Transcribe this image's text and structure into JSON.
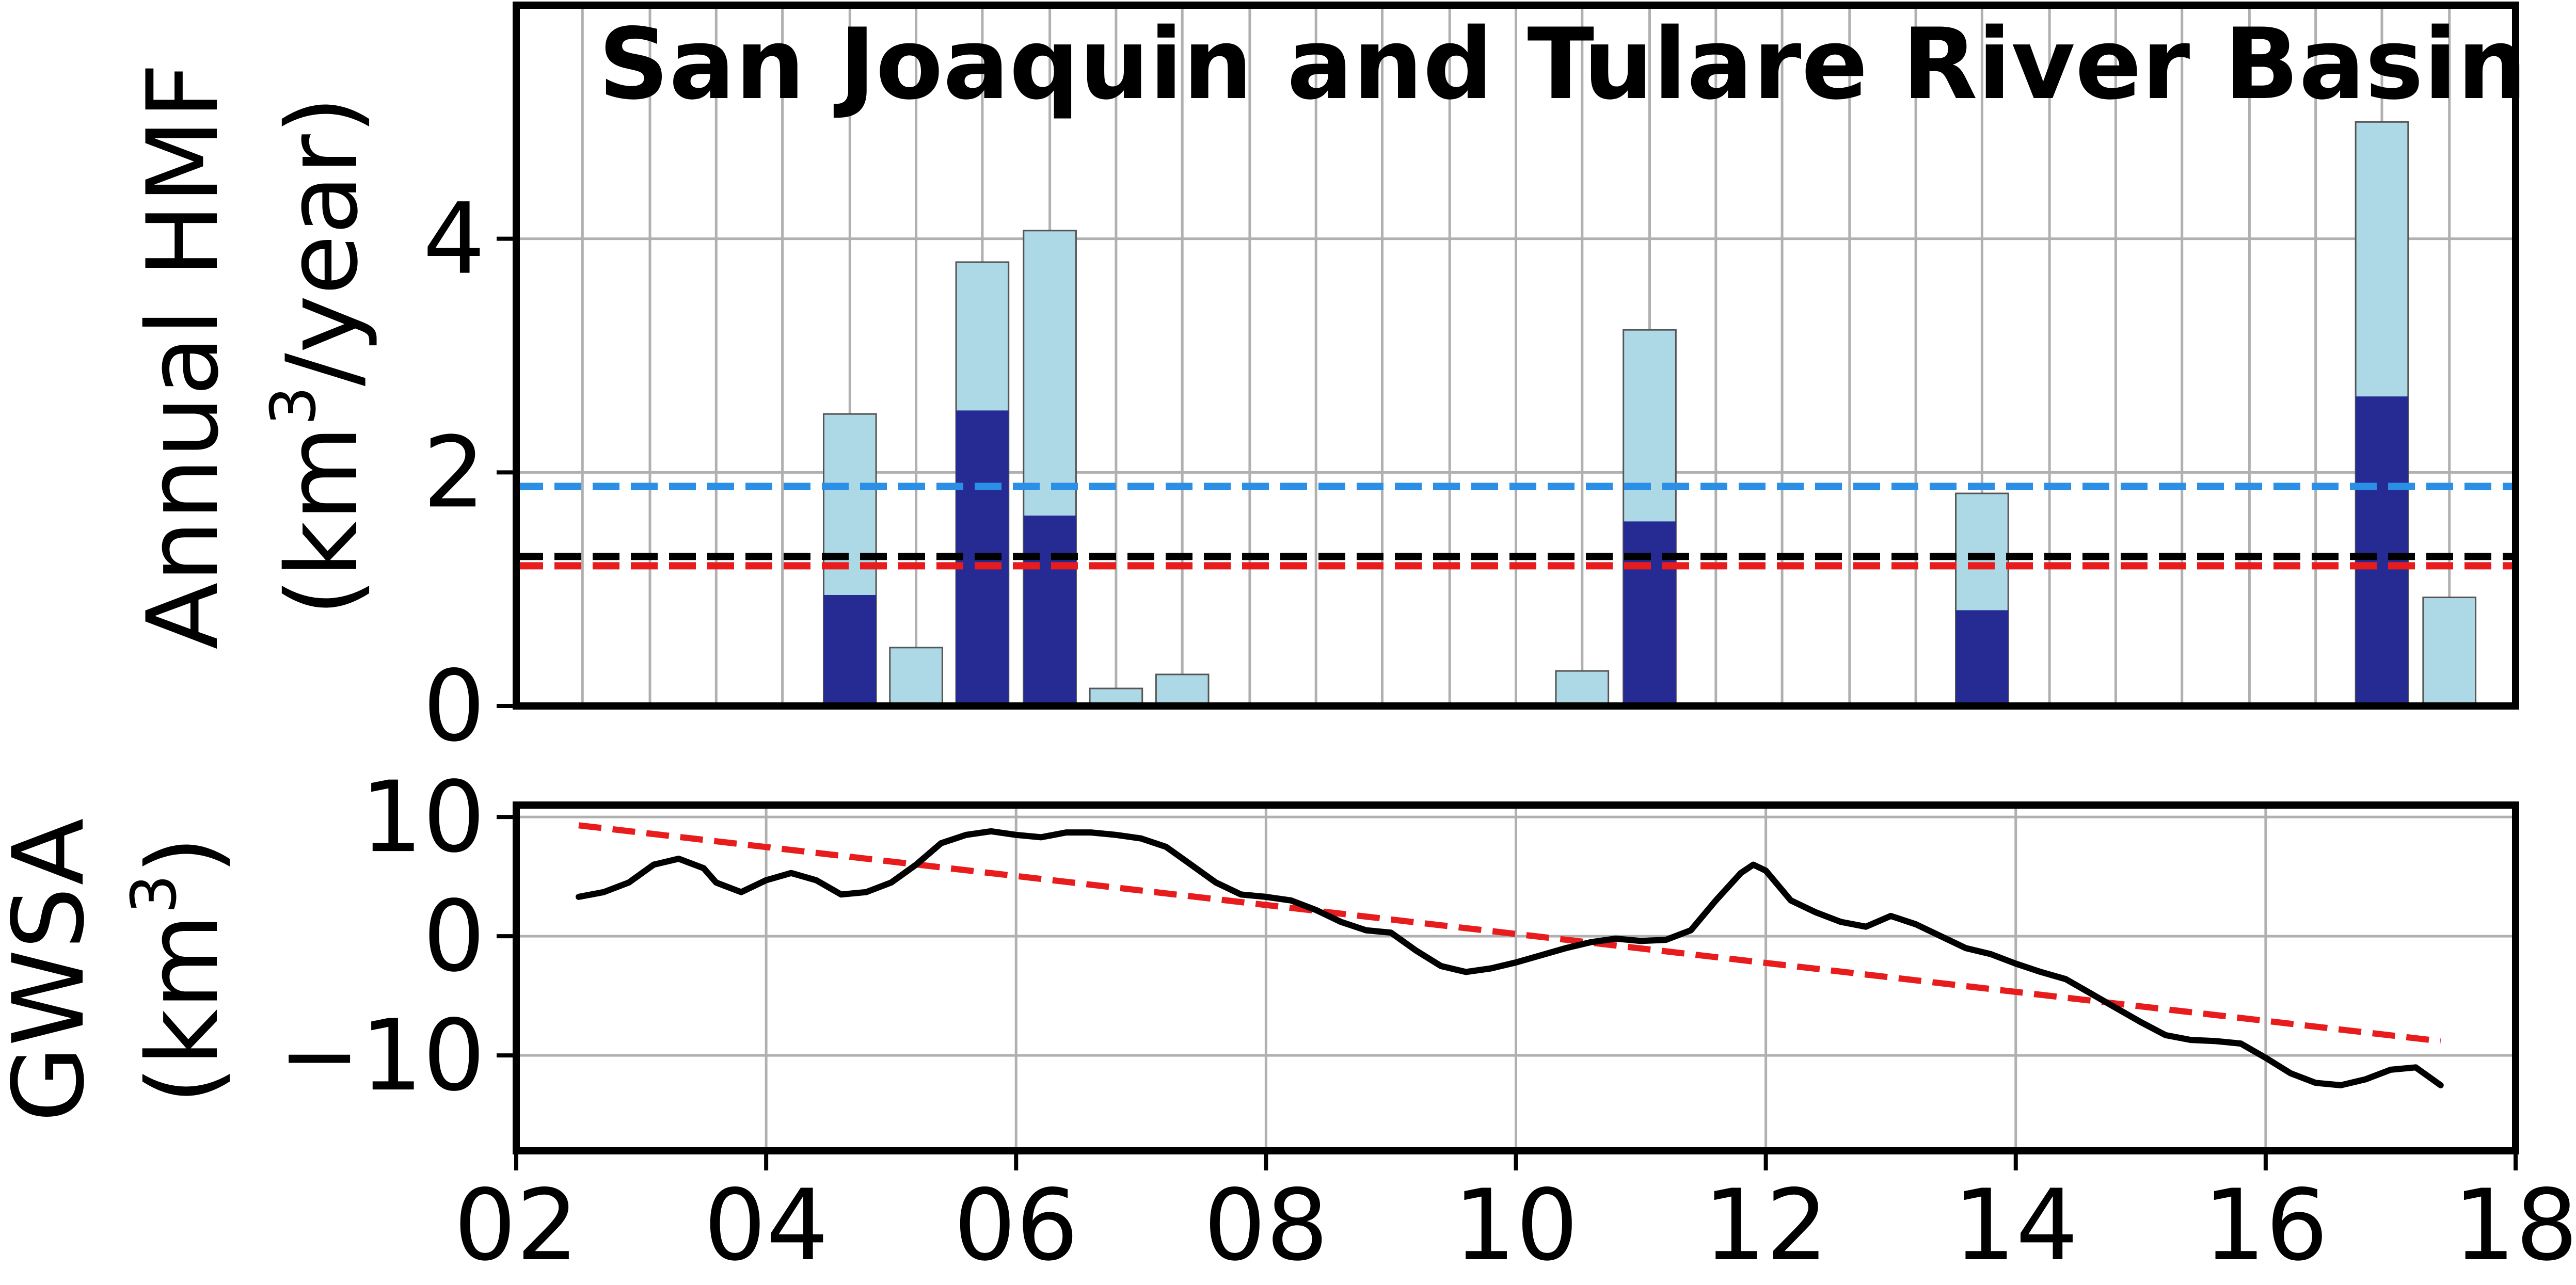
{
  "chart_data": [
    {
      "type": "bar",
      "title": "San Joaquin and Tulare River Basin",
      "ylabel_line1": "Annual HMF",
      "ylabel_line2_prefix": "(km",
      "ylabel_line2_sup": "3",
      "ylabel_line2_suffix": "/year)",
      "xlim": [
        2002,
        2018
      ],
      "ylim": [
        0,
        6
      ],
      "yticks": [
        "0",
        "2",
        "4"
      ],
      "grid": true,
      "bar_width": 0.42,
      "bar_x": [
        2002.53,
        2003.07,
        2003.6,
        2004.13,
        2004.67,
        2005.2,
        2005.73,
        2006.27,
        2006.8,
        2007.33,
        2007.87,
        2008.4,
        2008.93,
        2009.47,
        2010.0,
        2010.53,
        2011.07,
        2011.6,
        2012.13,
        2012.67,
        2013.2,
        2013.73,
        2014.27,
        2014.8,
        2015.33,
        2015.87,
        2016.4,
        2016.93,
        2017.47
      ],
      "series": [
        {
          "color": "#add8e6",
          "values": [
            0,
            0,
            0,
            0,
            2.5,
            0.5,
            3.8,
            4.07,
            0.15,
            0.27,
            0,
            0,
            0,
            0,
            0,
            0.3,
            3.22,
            0,
            0,
            0,
            0,
            1.82,
            0,
            0,
            0,
            0,
            0,
            5.0,
            0.93
          ]
        },
        {
          "color": "#252b93",
          "values": [
            0,
            0,
            0,
            0,
            0.95,
            0,
            2.53,
            1.63,
            0,
            0,
            0,
            0,
            0,
            0,
            0,
            0,
            1.58,
            0,
            0,
            0,
            0,
            0.82,
            0,
            0,
            0,
            0,
            0,
            2.65,
            0
          ]
        }
      ],
      "reference_lines": [
        {
          "value": 1.88,
          "color": "#2b8fe6"
        },
        {
          "value": 1.28,
          "color": "#000000"
        },
        {
          "value": 1.2,
          "color": "#e81c1c"
        }
      ]
    },
    {
      "type": "line",
      "ylabel_line1": "GWSA",
      "ylabel_line2_prefix": "(km",
      "ylabel_line2_sup": "3",
      "ylabel_line2_suffix": ")",
      "xlim": [
        2002,
        2018
      ],
      "ylim": [
        -18,
        11
      ],
      "xticks": [
        "02",
        "04",
        "06",
        "08",
        "10",
        "12",
        "14",
        "16",
        "18"
      ],
      "yticks": [
        "−10",
        "0",
        "10"
      ],
      "grid": true,
      "series": [
        {
          "color": "#000000",
          "x": [
            2002.5,
            2002.7,
            2002.9,
            2003.1,
            2003.3,
            2003.5,
            2003.6,
            2003.8,
            2004.0,
            2004.2,
            2004.4,
            2004.6,
            2004.8,
            2005.0,
            2005.2,
            2005.4,
            2005.6,
            2005.8,
            2006.0,
            2006.2,
            2006.4,
            2006.6,
            2006.8,
            2007.0,
            2007.2,
            2007.4,
            2007.6,
            2007.8,
            2008.0,
            2008.2,
            2008.4,
            2008.6,
            2008.8,
            2009.0,
            2009.2,
            2009.4,
            2009.6,
            2009.8,
            2010.0,
            2010.2,
            2010.4,
            2010.6,
            2010.8,
            2011.0,
            2011.2,
            2011.4,
            2011.6,
            2011.8,
            2011.9,
            2012.0,
            2012.2,
            2012.4,
            2012.6,
            2012.8,
            2013.0,
            2013.2,
            2013.4,
            2013.6,
            2013.8,
            2014.0,
            2014.2,
            2014.4,
            2014.6,
            2014.8,
            2015.0,
            2015.2,
            2015.4,
            2015.6,
            2015.8,
            2016.0,
            2016.2,
            2016.4,
            2016.6,
            2016.8,
            2017.0,
            2017.2,
            2017.4
          ],
          "y": [
            3.3,
            3.7,
            4.5,
            6.0,
            6.5,
            5.7,
            4.5,
            3.7,
            4.7,
            5.3,
            4.7,
            3.5,
            3.7,
            4.5,
            6.0,
            7.8,
            8.5,
            8.8,
            8.5,
            8.3,
            8.7,
            8.7,
            8.5,
            8.2,
            7.5,
            6.0,
            4.5,
            3.5,
            3.3,
            3.0,
            2.2,
            1.2,
            0.5,
            0.3,
            -1.2,
            -2.5,
            -3.0,
            -2.7,
            -2.2,
            -1.6,
            -1.0,
            -0.5,
            -0.2,
            -0.4,
            -0.3,
            0.5,
            3.0,
            5.3,
            6.0,
            5.5,
            3.0,
            2.0,
            1.2,
            0.8,
            1.7,
            1.0,
            0.0,
            -1.0,
            -1.5,
            -2.3,
            -3.0,
            -3.6,
            -4.8,
            -6.0,
            -7.2,
            -8.3,
            -8.7,
            -8.8,
            -9.0,
            -10.2,
            -11.5,
            -12.3,
            -12.5,
            -12.0,
            -11.2,
            -11.0,
            -12.5
          ]
        }
      ],
      "trend_line": {
        "color": "#e81c1c",
        "x": [
          2002.5,
          2017.4
        ],
        "y": [
          9.3,
          -8.8
        ]
      }
    }
  ]
}
